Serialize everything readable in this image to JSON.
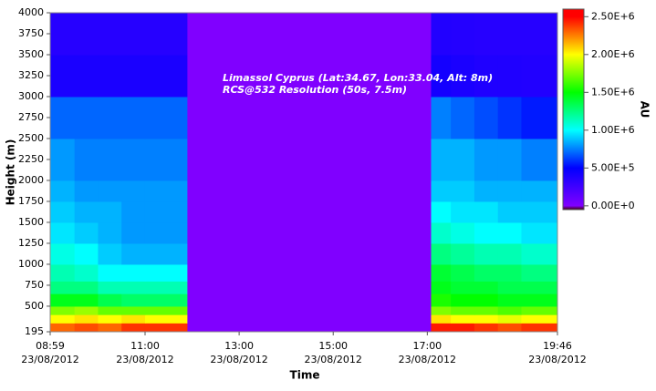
{
  "chart_data": {
    "type": "heatmap",
    "annotations": [
      "Limassol Cyprus (Lat:34.67, Lon:33.04, Alt: 8m)",
      "RCS@532 Resolution (50s, 7.5m)"
    ],
    "x_label": "Time",
    "y_label": "Height (m)",
    "colorbar_label": "AU",
    "xlim": [
      8.983,
      19.767
    ],
    "xticks": [
      {
        "value": 8.983,
        "label": [
          "08:59",
          "23/08/2012"
        ]
      },
      {
        "value": 11,
        "label": [
          "11:00",
          "23/08/2012"
        ]
      },
      {
        "value": 13,
        "label": [
          "13:00",
          "23/08/2012"
        ]
      },
      {
        "value": 15,
        "label": [
          "15:00",
          "23/08/2012"
        ]
      },
      {
        "value": 17,
        "label": [
          "17:00",
          "23/08/2012"
        ]
      },
      {
        "value": 19.767,
        "label": [
          "19:46",
          "23/08/2012"
        ]
      }
    ],
    "ylim": [
      195,
      4000
    ],
    "yticks": [
      195,
      500,
      750,
      1000,
      1250,
      1500,
      1750,
      2000,
      2250,
      2500,
      2750,
      3000,
      3250,
      3500,
      3750,
      4000
    ],
    "x_edges": [
      8.983,
      9.5,
      10,
      10.5,
      11,
      11.9,
      17.08,
      17.5,
      18,
      18.5,
      19,
      19.767
    ],
    "y_edges": [
      195,
      300,
      400,
      500,
      650,
      800,
      1000,
      1250,
      1500,
      1750,
      2000,
      2500,
      3000,
      3500,
      4000
    ],
    "z": [
      [
        2300000,
        2350000,
        2300000,
        2400000,
        2400000,
        0,
        2450000,
        2450000,
        2400000,
        2350000,
        2400000
      ],
      [
        2000000,
        2050000,
        2000000,
        2050000,
        2000000,
        0,
        2050000,
        2000000,
        2000000,
        1950000,
        2000000
      ],
      [
        1750000,
        1800000,
        1700000,
        1700000,
        1700000,
        0,
        1750000,
        1700000,
        1700000,
        1650000,
        1700000
      ],
      [
        1450000,
        1450000,
        1350000,
        1300000,
        1300000,
        0,
        1550000,
        1500000,
        1500000,
        1450000,
        1450000
      ],
      [
        1250000,
        1250000,
        1150000,
        1150000,
        1150000,
        0,
        1450000,
        1400000,
        1400000,
        1350000,
        1350000
      ],
      [
        1150000,
        1100000,
        1000000,
        1000000,
        1000000,
        0,
        1400000,
        1350000,
        1300000,
        1300000,
        1250000
      ],
      [
        1050000,
        1000000,
        900000,
        850000,
        850000,
        0,
        1250000,
        1200000,
        1150000,
        1150000,
        1100000
      ],
      [
        950000,
        900000,
        850000,
        800000,
        800000,
        0,
        1100000,
        1050000,
        1000000,
        1000000,
        950000
      ],
      [
        900000,
        850000,
        850000,
        800000,
        800000,
        0,
        1000000,
        950000,
        950000,
        900000,
        900000
      ],
      [
        850000,
        800000,
        800000,
        800000,
        800000,
        0,
        900000,
        900000,
        850000,
        850000,
        850000
      ],
      [
        800000,
        750000,
        750000,
        750000,
        750000,
        0,
        850000,
        850000,
        800000,
        800000,
        750000
      ],
      [
        700000,
        700000,
        700000,
        700000,
        700000,
        0,
        750000,
        700000,
        650000,
        600000,
        550000
      ],
      [
        400000,
        400000,
        400000,
        400000,
        400000,
        0,
        420000,
        400000,
        380000,
        380000,
        370000
      ],
      [
        350000,
        350000,
        350000,
        350000,
        350000,
        0,
        370000,
        360000,
        350000,
        350000,
        350000
      ]
    ],
    "clim": [
      -50000,
      2600000
    ],
    "cticks": [
      {
        "value": 2500000,
        "label": "2.50E+6"
      },
      {
        "value": 2000000,
        "label": "2.00E+6"
      },
      {
        "value": 1500000,
        "label": "1.50E+6"
      },
      {
        "value": 1000000,
        "label": "1.00E+6"
      },
      {
        "value": 500000,
        "label": "5.00E+5"
      },
      {
        "value": 0,
        "label": "0.00E+0"
      }
    ],
    "colorscale": [
      [
        -50000,
        "#400000"
      ],
      [
        0,
        "#8000ff"
      ],
      [
        500000,
        "#0000ff"
      ],
      [
        1000000,
        "#00ffff"
      ],
      [
        1500000,
        "#00ff00"
      ],
      [
        2000000,
        "#ffff00"
      ],
      [
        2500000,
        "#ff0000"
      ],
      [
        2600000,
        "#ff0000"
      ]
    ]
  }
}
